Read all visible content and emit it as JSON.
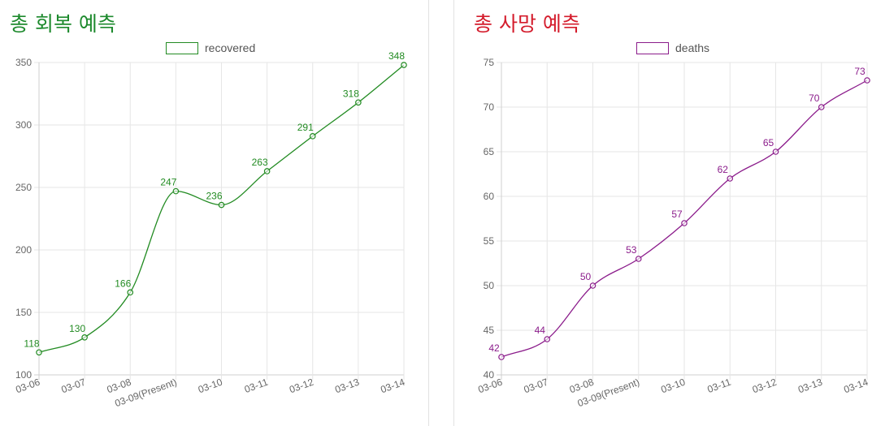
{
  "charts": [
    {
      "title": "총 회복 예측",
      "title_color": "#1e8a2e",
      "legend_label": "recovered",
      "color": "#228b22"
    },
    {
      "title": "총 사망 예측",
      "title_color": "#d41c2c",
      "legend_label": "deaths",
      "color": "#8b1c8b"
    }
  ],
  "chart_data": [
    {
      "type": "line",
      "title": "총 회복 예측",
      "categories": [
        "03-06",
        "03-07",
        "03-08",
        "03-09(Present)",
        "03-10",
        "03-11",
        "03-12",
        "03-13",
        "03-14"
      ],
      "series": [
        {
          "name": "recovered",
          "values": [
            118,
            130,
            166,
            247,
            236,
            263,
            291,
            318,
            348
          ]
        }
      ],
      "ylim": [
        100,
        350
      ],
      "yticks": [
        100,
        150,
        200,
        250,
        300,
        350
      ],
      "grid": true,
      "legend": "top-center"
    },
    {
      "type": "line",
      "title": "총 사망 예측",
      "categories": [
        "03-06",
        "03-07",
        "03-08",
        "03-09(Present)",
        "03-10",
        "03-11",
        "03-12",
        "03-13",
        "03-14"
      ],
      "series": [
        {
          "name": "deaths",
          "values": [
            42,
            44,
            50,
            53,
            57,
            62,
            65,
            70,
            73
          ]
        }
      ],
      "ylim": [
        40,
        75
      ],
      "yticks": [
        40,
        45,
        50,
        55,
        60,
        65,
        70,
        75
      ],
      "grid": true,
      "legend": "top-center"
    }
  ]
}
